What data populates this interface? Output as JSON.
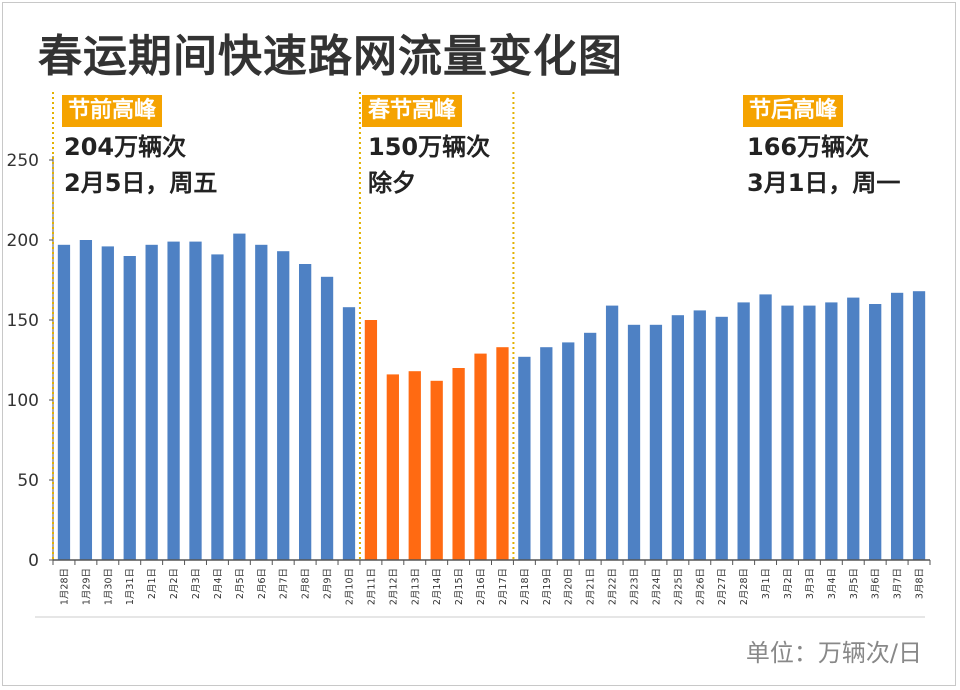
{
  "chart_data": {
    "type": "bar",
    "title": "春运期间快速路网流量变化图",
    "unit_label": "单位：万辆次/日",
    "ylim": [
      0,
      250
    ],
    "yticks": [
      0,
      50,
      100,
      150,
      200,
      250
    ],
    "grid": false,
    "categories": [
      "1月28日",
      "1月29日",
      "1月30日",
      "1月31日",
      "2月1日",
      "2月2日",
      "2月3日",
      "2月4日",
      "2月5日",
      "2月6日",
      "2月7日",
      "2月8日",
      "2月9日",
      "2月10日",
      "2月11日",
      "2月12日",
      "2月13日",
      "2月14日",
      "2月15日",
      "2月16日",
      "2月17日",
      "2月18日",
      "2月19日",
      "2月20日",
      "2月21日",
      "2月22日",
      "2月23日",
      "2月24日",
      "2月25日",
      "2月26日",
      "2月27日",
      "2月28日",
      "3月1日",
      "3月2日",
      "3月3日",
      "3月4日",
      "3月5日",
      "3月6日",
      "3月7日",
      "3月8日"
    ],
    "values": [
      197,
      200,
      196,
      190,
      197,
      199,
      199,
      191,
      204,
      197,
      193,
      185,
      177,
      158,
      150,
      116,
      118,
      112,
      120,
      129,
      133,
      127,
      133,
      136,
      142,
      159,
      147,
      147,
      153,
      156,
      152,
      161,
      166,
      159,
      159,
      161,
      164,
      160,
      167,
      168
    ],
    "colors": {
      "default": "#4e81c4",
      "highlight": "#ff6a12",
      "divider": "#e3b100",
      "axis": "#555555"
    },
    "highlight_range": [
      14,
      20
    ],
    "annotations": [
      {
        "badge": "节前高峰",
        "line1": "204万辆次",
        "line2": "2月5日，周五"
      },
      {
        "badge": "春节高峰",
        "line1": "150万辆次",
        "line2": "除夕"
      },
      {
        "badge": "节后高峰",
        "line1": "166万辆次",
        "line2": "3月1日，周一"
      }
    ]
  }
}
